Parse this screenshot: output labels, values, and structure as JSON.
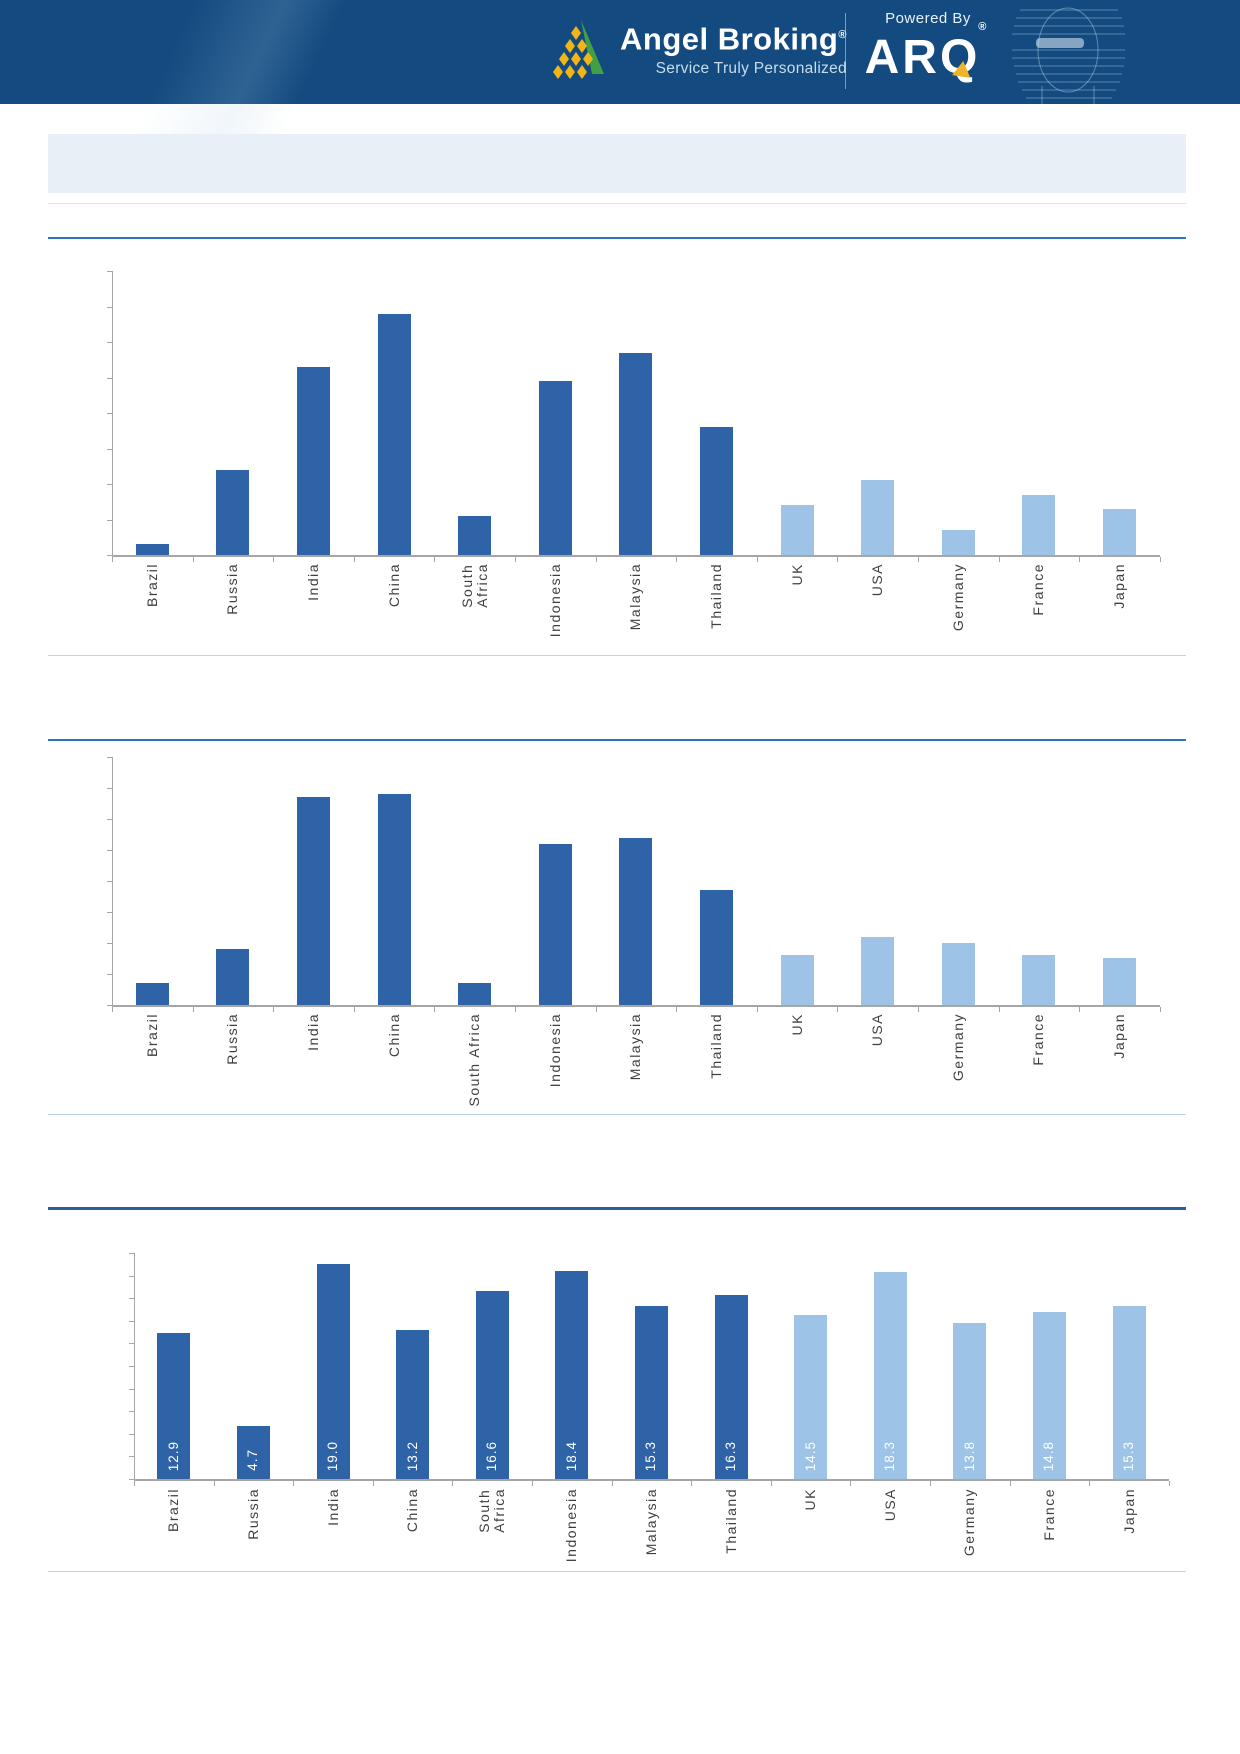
{
  "header": {
    "brand": "Angel Broking",
    "brand_reg": "®",
    "tagline": "Service Truly Personalized",
    "powered_by": "Powered By",
    "arq_brand": "ARQ",
    "arq_reg": "®"
  },
  "title_box": {
    "text": ""
  },
  "colors": {
    "emerging_bar": "#2e63a7",
    "developed_bar": "#9dc3e6",
    "rule_medium": "#2e75b5",
    "rule_dark": "#2c5d9e",
    "rule_light": "#b9d5ea",
    "faint_rule": "#dbe5f1",
    "axis": "#a6a6a6",
    "label_text": "#3f3f3f",
    "value_label_text": "#ffffff",
    "header_bg": "#134b80",
    "logo_yellow": "#f2b517",
    "logo_green": "#41a045",
    "title_box_bg": "#e9eff7"
  },
  "chart_data": [
    {
      "type": "bar",
      "title": "",
      "categories": [
        "Brazil",
        "Russia",
        "India",
        "China",
        "South Africa",
        "Indonesia",
        "Malaysia",
        "Thailand",
        "UK",
        "USA",
        "Germany",
        "France",
        "Japan"
      ],
      "x_labels": [
        "Brazil",
        "Russia",
        "India",
        "China",
        "South\nAfrica",
        "Indonesia",
        "Malaysia",
        "Thailand",
        "UK",
        "USA",
        "Germany",
        "France",
        "Japan"
      ],
      "values": [
        0.3,
        2.4,
        5.3,
        6.8,
        1.1,
        4.9,
        5.7,
        3.6,
        1.4,
        2.1,
        0.7,
        1.7,
        1.3
      ],
      "emerging_count": 8,
      "ylim": [
        0,
        8
      ],
      "y_tick_interval": 1,
      "y_tick_labels_visible": false,
      "grid": false,
      "legend": null,
      "value_labels_shown": false
    },
    {
      "type": "bar",
      "title": "",
      "categories": [
        "Brazil",
        "Russia",
        "India",
        "China",
        "South Africa",
        "Indonesia",
        "Malaysia",
        "Thailand",
        "UK",
        "USA",
        "Germany",
        "France",
        "Japan"
      ],
      "x_labels": [
        "Brazil",
        "Russia",
        "India",
        "China",
        "South Africa",
        "Indonesia",
        "Malaysia",
        "Thailand",
        "UK",
        "USA",
        "Germany",
        "France",
        "Japan"
      ],
      "values": [
        0.7,
        1.8,
        6.7,
        6.8,
        0.7,
        5.2,
        5.4,
        3.7,
        1.6,
        2.2,
        2.0,
        1.6,
        1.5
      ],
      "emerging_count": 8,
      "ylim": [
        0,
        8
      ],
      "y_tick_interval": 1,
      "y_tick_labels_visible": false,
      "grid": false,
      "legend": null,
      "value_labels_shown": false
    },
    {
      "type": "bar",
      "title": "",
      "categories": [
        "Brazil",
        "Russia",
        "India",
        "China",
        "South Africa",
        "Indonesia",
        "Malaysia",
        "Thailand",
        "UK",
        "USA",
        "Germany",
        "France",
        "Japan"
      ],
      "x_labels": [
        "Brazil",
        "Russia",
        "India",
        "China",
        "South\nAfrica",
        "Indonesia",
        "Malaysia",
        "Thailand",
        "UK",
        "USA",
        "Germany",
        "France",
        "Japan"
      ],
      "values": [
        12.9,
        4.7,
        19.0,
        13.2,
        16.6,
        18.4,
        15.3,
        16.3,
        14.5,
        18.3,
        13.8,
        14.8,
        15.3
      ],
      "value_labels": [
        "12.9",
        "4.7",
        "19.0",
        "13.2",
        "16.6",
        "18.4",
        "15.3",
        "16.3",
        "14.5",
        "18.3",
        "13.8",
        "14.8",
        "15.3"
      ],
      "emerging_count": 8,
      "ylim": [
        0,
        20
      ],
      "y_tick_interval": 2,
      "y_tick_labels_visible": false,
      "grid": false,
      "legend": null,
      "value_labels_shown": true
    }
  ]
}
